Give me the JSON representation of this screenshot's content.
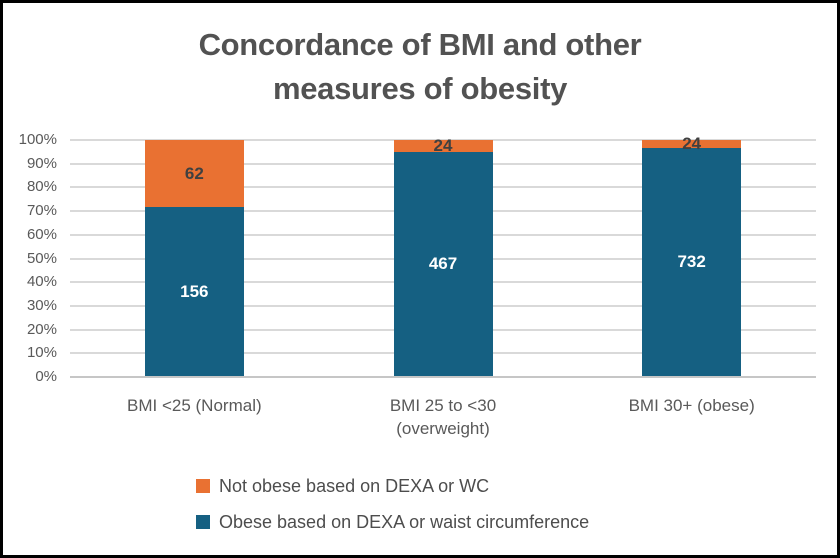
{
  "window": {
    "background_color": "#FFFFFF",
    "border_color": "#000000"
  },
  "chart_data": {
    "type": "bar",
    "subtype": "stacked-100-percent-column",
    "title": "Concordance of BMI and other measures of obesity",
    "title_lines": [
      "Concordance of BMI and other",
      "measures of obesity"
    ],
    "categories": [
      "BMI <25 (Normal)",
      "BMI 25 to <30 (overweight)",
      "BMI 30+ (obese)"
    ],
    "category_lines": [
      [
        "BMI <25 (Normal)"
      ],
      [
        "BMI 25 to <30",
        "(overweight)"
      ],
      [
        "BMI 30+ (obese)"
      ]
    ],
    "series": [
      {
        "name": "Obese based on DEXA or waist circumference",
        "color": "#156082",
        "label_color": "#FFFFFF",
        "values": [
          156,
          467,
          732
        ]
      },
      {
        "name": "Not obese based on DEXA or WC",
        "color": "#E97132",
        "label_color": "#404040",
        "values": [
          62,
          24,
          24
        ]
      }
    ],
    "legend": [
      {
        "label": "Not obese based on DEXA or WC",
        "color": "#E97132"
      },
      {
        "label": "Obese based on DEXA or waist circumference",
        "color": "#156082"
      }
    ],
    "y_axis": {
      "format": "percent",
      "min": 0,
      "max": 100,
      "ticks": [
        "100%",
        "90%",
        "80%",
        "70%",
        "60%",
        "50%",
        "40%",
        "30%",
        "20%",
        "10%",
        "0%"
      ]
    },
    "grid": true,
    "gridline_color": "#D9D9D9",
    "axis_line_color": "#C6C6C6",
    "legend_position": "bottom-left",
    "title_color": "#525252",
    "tick_label_color": "#595959"
  }
}
